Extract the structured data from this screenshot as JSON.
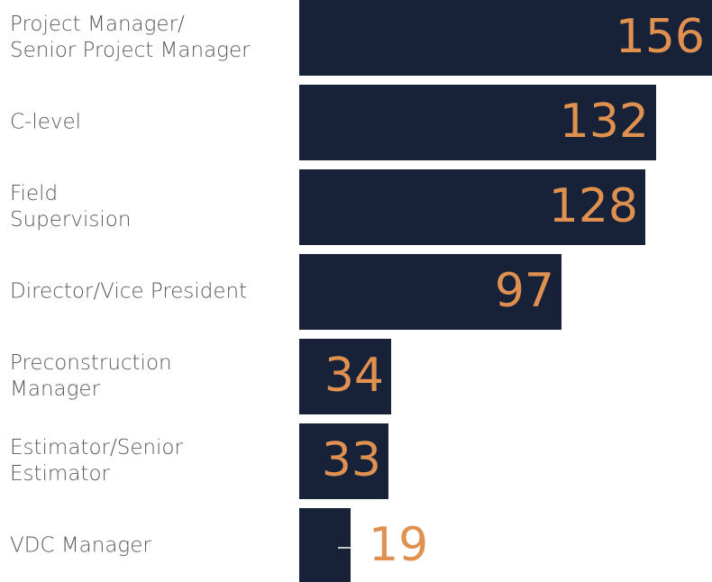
{
  "chart_data": {
    "type": "bar",
    "orientation": "horizontal",
    "categories": [
      "Project Manager/\nSenior Project Manager",
      "C-level",
      "Field\nSupervision",
      "Director/Vice President",
      "Preconstruction\nManager",
      "Estimator/Senior\nEstimator",
      "VDC Manager"
    ],
    "values": [
      156,
      132,
      128,
      97,
      34,
      33,
      19
    ],
    "color": "#172238",
    "label_color": "#e0904f"
  }
}
